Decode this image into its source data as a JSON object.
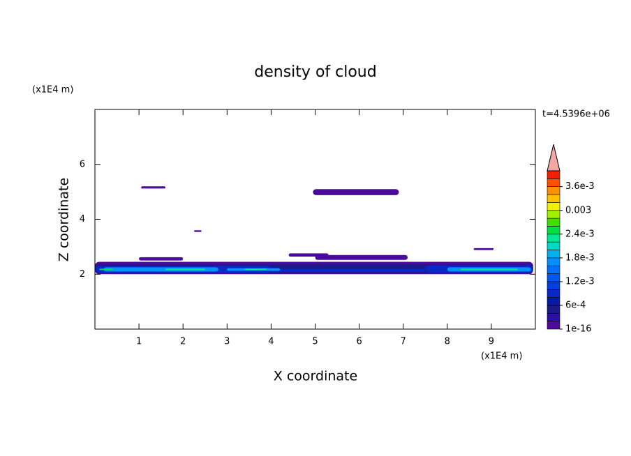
{
  "chart_data": {
    "type": "contour",
    "title": "density of cloud",
    "x_label": "X coordinate",
    "y_label": "Z coordinate",
    "x_unit": "(x1E4 m)",
    "y_unit": "(x1E4 m)",
    "time_label": "t=4.5396e+06",
    "xlim": [
      0,
      10
    ],
    "ylim": [
      0,
      8
    ],
    "xticks": [
      1,
      2,
      3,
      4,
      5,
      6,
      7,
      8,
      9
    ],
    "yticks": [
      2,
      4,
      6
    ],
    "levels": [
      1e-16,
      0.0002,
      0.0004,
      0.0006,
      0.0008,
      0.001,
      0.0012,
      0.0014,
      0.0016,
      0.0018,
      0.002,
      0.0022,
      0.0024,
      0.0026,
      0.0028,
      0.003,
      0.0032,
      0.0034,
      0.0036,
      0.0038,
      0.004
    ],
    "colors": [
      "#4b0c9e",
      "#2c10a0",
      "#1a1a8c",
      "#0a1aa8",
      "#0a28c8",
      "#0040e0",
      "#0058f0",
      "#0070ff",
      "#0090ff",
      "#00b0f0",
      "#00d8c8",
      "#00e890",
      "#00e040",
      "#40e000",
      "#a0f000",
      "#f0f000",
      "#ffc000",
      "#ff9000",
      "#ff5000",
      "#f02000"
    ],
    "over_color": "#f4a6a6",
    "colorbar_ticks": [
      1e-16,
      {
        "value": 0.0006,
        "label": "6e-4"
      },
      {
        "value": 0.0012,
        "label": "1.2e-3"
      },
      {
        "value": 0.0018,
        "label": "1.8e-3"
      },
      {
        "value": 0.0024,
        "label": "2.4e-3"
      },
      0.003,
      {
        "value": 0.0036,
        "label": "3.6e-3"
      }
    ],
    "patches": [
      {
        "x": [
          1.05,
          1.6
        ],
        "z": [
          5.12,
          5.2
        ],
        "value": 0.0001
      },
      {
        "x": [
          2.25,
          2.42
        ],
        "z": [
          3.54,
          3.6
        ],
        "value": 0.0001
      },
      {
        "x": [
          4.95,
          6.9
        ],
        "z": [
          4.88,
          5.1
        ],
        "value": 0.0001
      },
      {
        "x": [
          8.6,
          9.05
        ],
        "z": [
          2.88,
          2.95
        ],
        "value": 0.0001
      },
      {
        "x": [
          4.4,
          5.3
        ],
        "z": [
          2.64,
          2.76
        ],
        "value": 0.0001
      },
      {
        "x": [
          1.0,
          2.0
        ],
        "z": [
          2.5,
          2.62
        ],
        "value": 0.0001
      },
      {
        "x": [
          5.0,
          7.1
        ],
        "z": [
          2.52,
          2.7
        ],
        "value": 0.0001
      },
      {
        "x": [
          0,
          9.95
        ],
        "z": [
          2.0,
          2.45
        ],
        "value": 0.0001
      },
      {
        "x": [
          0,
          9.95
        ],
        "z": [
          2.03,
          2.36
        ],
        "value": 0.0005
      },
      {
        "x": [
          0,
          4.0
        ],
        "z": [
          2.05,
          2.3
        ],
        "value": 0.0009
      },
      {
        "x": [
          7.5,
          9.95
        ],
        "z": [
          2.05,
          2.32
        ],
        "value": 0.0009
      },
      {
        "x": [
          4.0,
          7.5
        ],
        "z": [
          2.08,
          2.18
        ],
        "value": 0.0009
      },
      {
        "x": [
          0.2,
          2.8
        ],
        "z": [
          2.1,
          2.25
        ],
        "value": 0.0017
      },
      {
        "x": [
          8.0,
          9.9
        ],
        "z": [
          2.1,
          2.25
        ],
        "value": 0.0017
      },
      {
        "x": [
          3.0,
          4.2
        ],
        "z": [
          2.12,
          2.22
        ],
        "value": 0.0017
      },
      {
        "x": [
          1.6,
          2.5
        ],
        "z": [
          2.15,
          2.2
        ],
        "value": 0.0023
      },
      {
        "x": [
          8.3,
          9.6
        ],
        "z": [
          2.15,
          2.2
        ],
        "value": 0.0023
      },
      {
        "x": [
          3.4,
          3.9
        ],
        "z": [
          2.16,
          2.2
        ],
        "value": 0.0023
      },
      {
        "x": [
          0.1,
          0.4
        ],
        "z": [
          2.15,
          2.2
        ],
        "value": 0.0025
      }
    ]
  }
}
